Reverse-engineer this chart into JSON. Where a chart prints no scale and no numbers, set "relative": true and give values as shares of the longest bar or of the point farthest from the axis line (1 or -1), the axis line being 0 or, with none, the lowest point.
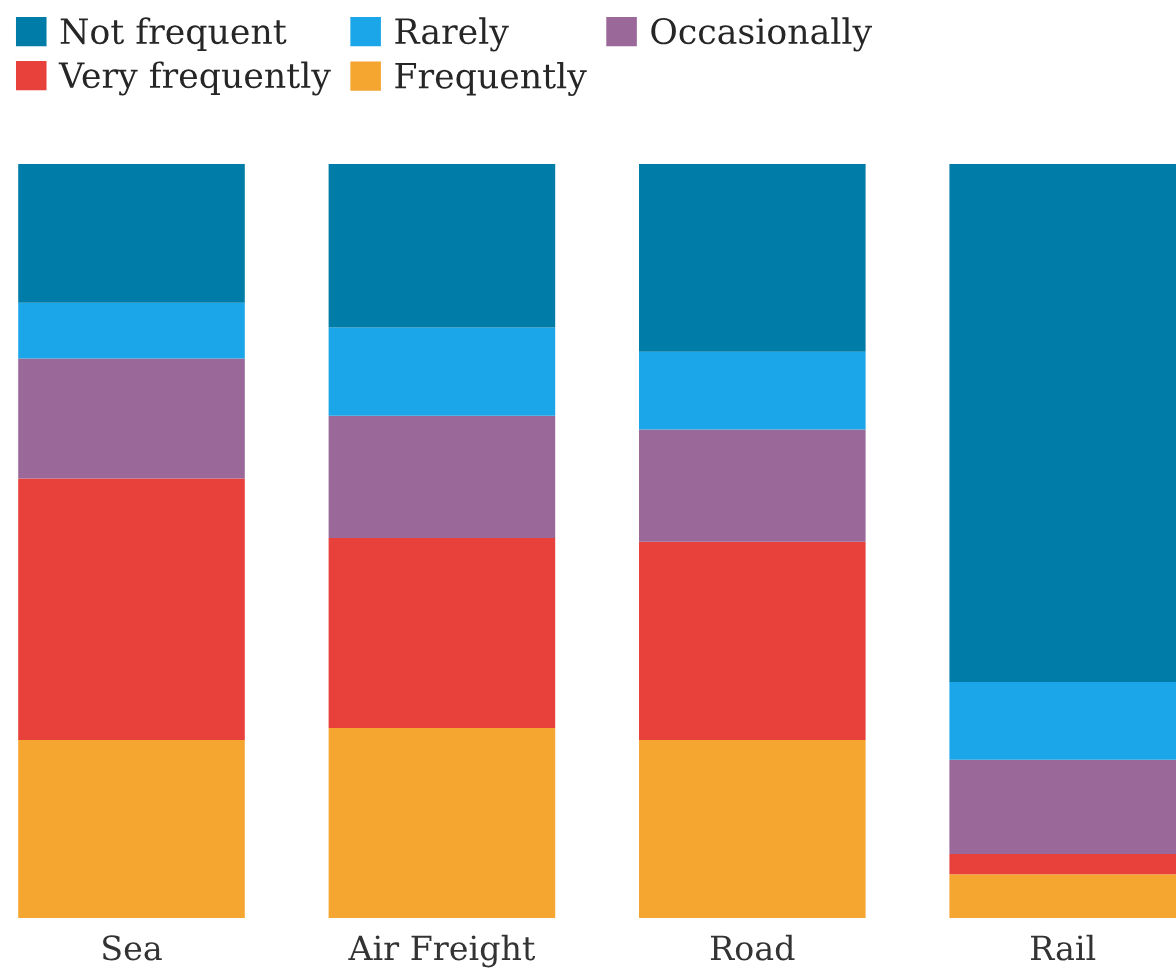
{
  "chart_data": {
    "type": "bar",
    "stacked": true,
    "relative": true,
    "legend": "top left",
    "grid": false,
    "categories": [
      "Sea",
      "Air Freight",
      "Road",
      "Rail"
    ],
    "series": [
      {
        "name": "Frequently",
        "color": "#f5a631",
        "values": [
          0.236,
          0.252,
          0.236,
          0.058
        ]
      },
      {
        "name": "Very frequently",
        "color": "#e8413b",
        "values": [
          0.347,
          0.252,
          0.263,
          0.027
        ]
      },
      {
        "name": "Occasionally",
        "color": "#9a6899",
        "values": [
          0.159,
          0.162,
          0.149,
          0.125
        ]
      },
      {
        "name": "Rarely",
        "color": "#1aa6e8",
        "values": [
          0.074,
          0.117,
          0.103,
          0.103
        ]
      },
      {
        "name": "Not frequent",
        "color": "#007ca8",
        "values": [
          0.184,
          0.217,
          0.249,
          0.687
        ]
      }
    ]
  }
}
